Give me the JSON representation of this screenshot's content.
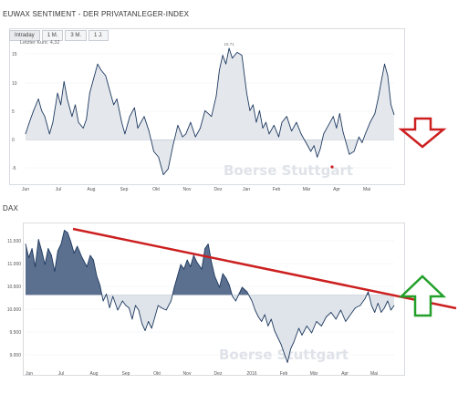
{
  "page": {
    "title1": "EUWAX SENTIMENT - DER PRIVATANLEGER-INDEX",
    "title2": "DAX",
    "tabs": [
      {
        "label": "Intraday",
        "active": true
      },
      {
        "label": "1 M.",
        "active": false
      },
      {
        "label": "3 M.",
        "active": false
      },
      {
        "label": "1 J.",
        "active": false
      }
    ],
    "last_value": "Letzter Kurs: 4,32",
    "watermark": "Boerse Stuttgart"
  },
  "colors": {
    "line": "#1f3a60",
    "area_fill": "#dfe4ea",
    "dark_fill": "#5b6f8f",
    "trendline": "#cc1f1f",
    "arrow_down": "#cc1f1f",
    "arrow_up": "#22a02a"
  },
  "chart_data": [
    {
      "type": "area",
      "name": "euwax-sentiment",
      "title": "EUWAX SENTIMENT - DER PRIVATANLEGER-INDEX",
      "x_tick_labels": [
        "Jun",
        "Jul",
        "Aug",
        "Sep",
        "Okt",
        "Nov",
        "Dez",
        "Jan",
        "Feb",
        "Mär",
        "Apr",
        "Mai"
      ],
      "y_tick_labels": [
        "15",
        "10",
        "5",
        "0",
        "-5"
      ],
      "ylim": [
        -7,
        16
      ],
      "baseline": 0,
      "high_label": "15.71",
      "points": [
        [
          0,
          1
        ],
        [
          0.12,
          3
        ],
        [
          0.25,
          5
        ],
        [
          0.4,
          7
        ],
        [
          0.5,
          5
        ],
        [
          0.6,
          4
        ],
        [
          0.75,
          1
        ],
        [
          0.85,
          3
        ],
        [
          1,
          8
        ],
        [
          1.1,
          6
        ],
        [
          1.2,
          10
        ],
        [
          1.3,
          7
        ],
        [
          1.45,
          4
        ],
        [
          1.55,
          6
        ],
        [
          1.65,
          3
        ],
        [
          1.8,
          2
        ],
        [
          1.9,
          3.5
        ],
        [
          2,
          8
        ],
        [
          2.15,
          11
        ],
        [
          2.25,
          13
        ],
        [
          2.35,
          12
        ],
        [
          2.5,
          11
        ],
        [
          2.6,
          9
        ],
        [
          2.75,
          6
        ],
        [
          2.85,
          7
        ],
        [
          3,
          3
        ],
        [
          3.1,
          1
        ],
        [
          3.25,
          4
        ],
        [
          3.4,
          5.5
        ],
        [
          3.5,
          2
        ],
        [
          3.7,
          4
        ],
        [
          3.85,
          1.5
        ],
        [
          4,
          -2
        ],
        [
          4.15,
          -3
        ],
        [
          4.3,
          -6
        ],
        [
          4.45,
          -5
        ],
        [
          4.6,
          -1
        ],
        [
          4.75,
          2.5
        ],
        [
          4.9,
          0.5
        ],
        [
          5,
          1
        ],
        [
          5.15,
          3
        ],
        [
          5.3,
          0.5
        ],
        [
          5.45,
          2
        ],
        [
          5.6,
          5
        ],
        [
          5.8,
          4
        ],
        [
          5.95,
          7.5
        ],
        [
          6.05,
          12
        ],
        [
          6.15,
          14.5
        ],
        [
          6.25,
          13
        ],
        [
          6.35,
          15.7
        ],
        [
          6.45,
          14
        ],
        [
          6.6,
          15
        ],
        [
          6.75,
          14.5
        ],
        [
          6.9,
          8
        ],
        [
          7,
          5
        ],
        [
          7.1,
          6
        ],
        [
          7.2,
          3
        ],
        [
          7.3,
          5
        ],
        [
          7.4,
          2
        ],
        [
          7.5,
          3
        ],
        [
          7.6,
          1
        ],
        [
          7.75,
          2.5
        ],
        [
          7.9,
          0.5
        ],
        [
          8,
          3
        ],
        [
          8.15,
          4
        ],
        [
          8.3,
          1.5
        ],
        [
          8.45,
          3
        ],
        [
          8.6,
          1
        ],
        [
          8.75,
          -0.5
        ],
        [
          8.9,
          -2
        ],
        [
          9,
          -1
        ],
        [
          9.1,
          -3
        ],
        [
          9.2,
          -1.5
        ],
        [
          9.3,
          1
        ],
        [
          9.45,
          2.5
        ],
        [
          9.6,
          4
        ],
        [
          9.7,
          2
        ],
        [
          9.8,
          4.5
        ],
        [
          9.9,
          1.5
        ],
        [
          10,
          -0.5
        ],
        [
          10.1,
          -2.5
        ],
        [
          10.25,
          -2
        ],
        [
          10.4,
          0.5
        ],
        [
          10.5,
          -0.5
        ],
        [
          10.6,
          1
        ],
        [
          10.75,
          3
        ],
        [
          10.9,
          4.5
        ],
        [
          11,
          7
        ],
        [
          11.1,
          10
        ],
        [
          11.2,
          13
        ],
        [
          11.3,
          11
        ],
        [
          11.4,
          6
        ],
        [
          11.5,
          4.3
        ]
      ]
    },
    {
      "type": "area",
      "name": "dax",
      "title": "DAX",
      "x_tick_labels": [
        "Jun",
        "Jul",
        "Aug",
        "Sep",
        "Okt",
        "Nov",
        "Dez",
        "2016",
        "Feb",
        "Mär",
        "Apr",
        "Mai"
      ],
      "y_tick_labels": [
        "11.500",
        "11.000",
        "10.500",
        "10.000",
        "9.500",
        "9.000"
      ],
      "ylim": [
        8650,
        11850
      ],
      "baseline": 10280,
      "points": [
        [
          0,
          11400
        ],
        [
          0.1,
          11100
        ],
        [
          0.2,
          11300
        ],
        [
          0.3,
          10900
        ],
        [
          0.4,
          11500
        ],
        [
          0.5,
          11250
        ],
        [
          0.6,
          10950
        ],
        [
          0.7,
          11300
        ],
        [
          0.8,
          11150
        ],
        [
          0.9,
          10800
        ],
        [
          1,
          11250
        ],
        [
          1.1,
          11400
        ],
        [
          1.2,
          11700
        ],
        [
          1.3,
          11650
        ],
        [
          1.4,
          11450
        ],
        [
          1.5,
          11200
        ],
        [
          1.6,
          11350
        ],
        [
          1.75,
          11100
        ],
        [
          1.9,
          10900
        ],
        [
          2,
          11150
        ],
        [
          2.1,
          11050
        ],
        [
          2.2,
          10700
        ],
        [
          2.3,
          10500
        ],
        [
          2.4,
          10150
        ],
        [
          2.5,
          10300
        ],
        [
          2.6,
          10000
        ],
        [
          2.7,
          10250
        ],
        [
          2.85,
          9950
        ],
        [
          3,
          10150
        ],
        [
          3.1,
          10050
        ],
        [
          3.2,
          10000
        ],
        [
          3.3,
          9750
        ],
        [
          3.4,
          10050
        ],
        [
          3.5,
          9950
        ],
        [
          3.6,
          9650
        ],
        [
          3.7,
          9500
        ],
        [
          3.8,
          9700
        ],
        [
          3.9,
          9550
        ],
        [
          4,
          9800
        ],
        [
          4.1,
          10050
        ],
        [
          4.2,
          10000
        ],
        [
          4.35,
          9950
        ],
        [
          4.5,
          10150
        ],
        [
          4.6,
          10450
        ],
        [
          4.7,
          10700
        ],
        [
          4.8,
          10950
        ],
        [
          4.9,
          10850
        ],
        [
          5,
          11050
        ],
        [
          5.1,
          10900
        ],
        [
          5.2,
          11150
        ],
        [
          5.3,
          11000
        ],
        [
          5.45,
          10850
        ],
        [
          5.55,
          11300
        ],
        [
          5.65,
          11400
        ],
        [
          5.75,
          11000
        ],
        [
          5.85,
          10700
        ],
        [
          6,
          10450
        ],
        [
          6.1,
          10750
        ],
        [
          6.2,
          10650
        ],
        [
          6.3,
          10500
        ],
        [
          6.4,
          10250
        ],
        [
          6.5,
          10150
        ],
        [
          6.6,
          10300
        ],
        [
          6.7,
          10450
        ],
        [
          6.85,
          10350
        ],
        [
          7,
          10150
        ],
        [
          7.1,
          9950
        ],
        [
          7.2,
          9800
        ],
        [
          7.3,
          9700
        ],
        [
          7.4,
          9850
        ],
        [
          7.5,
          9600
        ],
        [
          7.6,
          9750
        ],
        [
          7.7,
          9500
        ],
        [
          7.8,
          9350
        ],
        [
          7.9,
          9200
        ],
        [
          8,
          9000
        ],
        [
          8.1,
          8800
        ],
        [
          8.2,
          9100
        ],
        [
          8.3,
          9250
        ],
        [
          8.45,
          9550
        ],
        [
          8.55,
          9400
        ],
        [
          8.7,
          9600
        ],
        [
          8.85,
          9450
        ],
        [
          9,
          9700
        ],
        [
          9.15,
          9600
        ],
        [
          9.3,
          9800
        ],
        [
          9.45,
          9900
        ],
        [
          9.6,
          9750
        ],
        [
          9.75,
          9950
        ],
        [
          9.9,
          9700
        ],
        [
          10,
          9800
        ],
        [
          10.1,
          9900
        ],
        [
          10.2,
          10000
        ],
        [
          10.35,
          10050
        ],
        [
          10.5,
          10200
        ],
        [
          10.6,
          10350
        ],
        [
          10.7,
          10050
        ],
        [
          10.8,
          9900
        ],
        [
          10.9,
          10100
        ],
        [
          11,
          9900
        ],
        [
          11.1,
          10000
        ],
        [
          11.2,
          10150
        ],
        [
          11.3,
          9950
        ],
        [
          11.4,
          10050
        ]
      ]
    }
  ]
}
